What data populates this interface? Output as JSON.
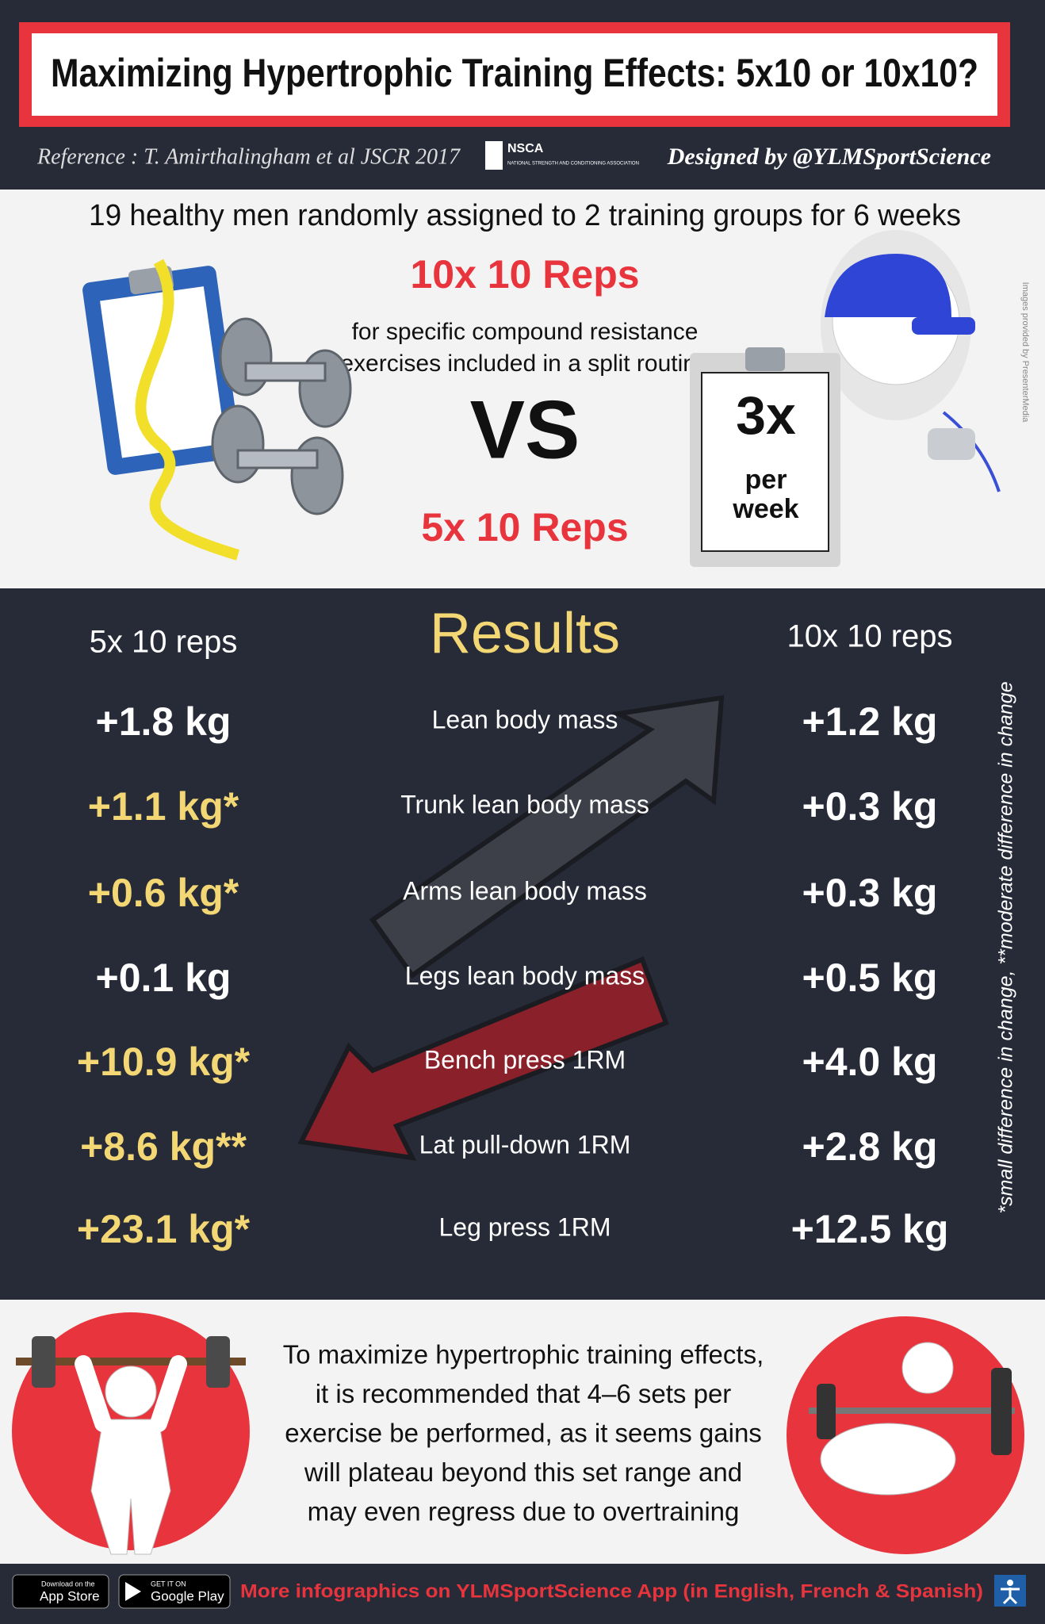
{
  "header": {
    "title": "Maximizing Hypertrophic Training Effects: 5x10 or 10x10?",
    "reference": "Reference : T. Amirthalingham et al JSCR 2017",
    "logo": "NSCA",
    "logo_subtitle": "NATIONAL STRENGTH AND CONDITIONING ASSOCIATION",
    "designer": "Designed by @YLMSportScience"
  },
  "study": {
    "summary": "19 healthy men randomly assigned to 2 training groups for 6 weeks",
    "group_a": "10x 10 Reps",
    "description": [
      "for specific compound resistance",
      "exercises included in a split routine"
    ],
    "vs": "VS",
    "group_b": "5x 10 Reps",
    "frequency": "3x",
    "frequency_unit": [
      "per",
      "week"
    ],
    "credit": "Images provided by PresenterMedia"
  },
  "results": {
    "title": "Results",
    "left_header": "5x 10 reps",
    "right_header": "10x 10 reps",
    "rows": [
      {
        "measure": "Lean body mass",
        "five": "+1.8 kg",
        "ten": "+1.2 kg",
        "highlight": false
      },
      {
        "measure": "Trunk lean body mass",
        "five": "+1.1 kg*",
        "ten": "+0.3 kg",
        "highlight": true
      },
      {
        "measure": "Arms lean body mass",
        "five": "+0.6 kg*",
        "ten": "+0.3 kg",
        "highlight": true
      },
      {
        "measure": "Legs lean body mass",
        "five": "+0.1 kg",
        "ten": "+0.5 kg",
        "highlight": false
      },
      {
        "measure": "Bench press 1RM",
        "five": "+10.9 kg*",
        "ten": "+4.0 kg",
        "highlight": true
      },
      {
        "measure": "Lat pull-down 1RM",
        "five": "+8.6 kg**",
        "ten": "+2.8 kg",
        "highlight": true
      },
      {
        "measure": "Leg press 1RM",
        "five": "+23.1 kg*",
        "ten": "+12.5 kg",
        "highlight": true
      }
    ],
    "footnote": "*small difference in change, **moderate difference in change"
  },
  "conclusion": {
    "lines": [
      "To maximize hypertrophic training effects,",
      "it is recommended that 4–6 sets per",
      "exercise be performed, as it seems gains",
      "will plateau beyond this set range and",
      "may even regress due to overtraining"
    ]
  },
  "footer": {
    "app_store_small": "Download on the",
    "app_store": "App Store",
    "google_small": "GET IT ON",
    "google": "Google Play",
    "promo": "More infographics on YLMSportScience App (in English, French & Spanish)"
  }
}
